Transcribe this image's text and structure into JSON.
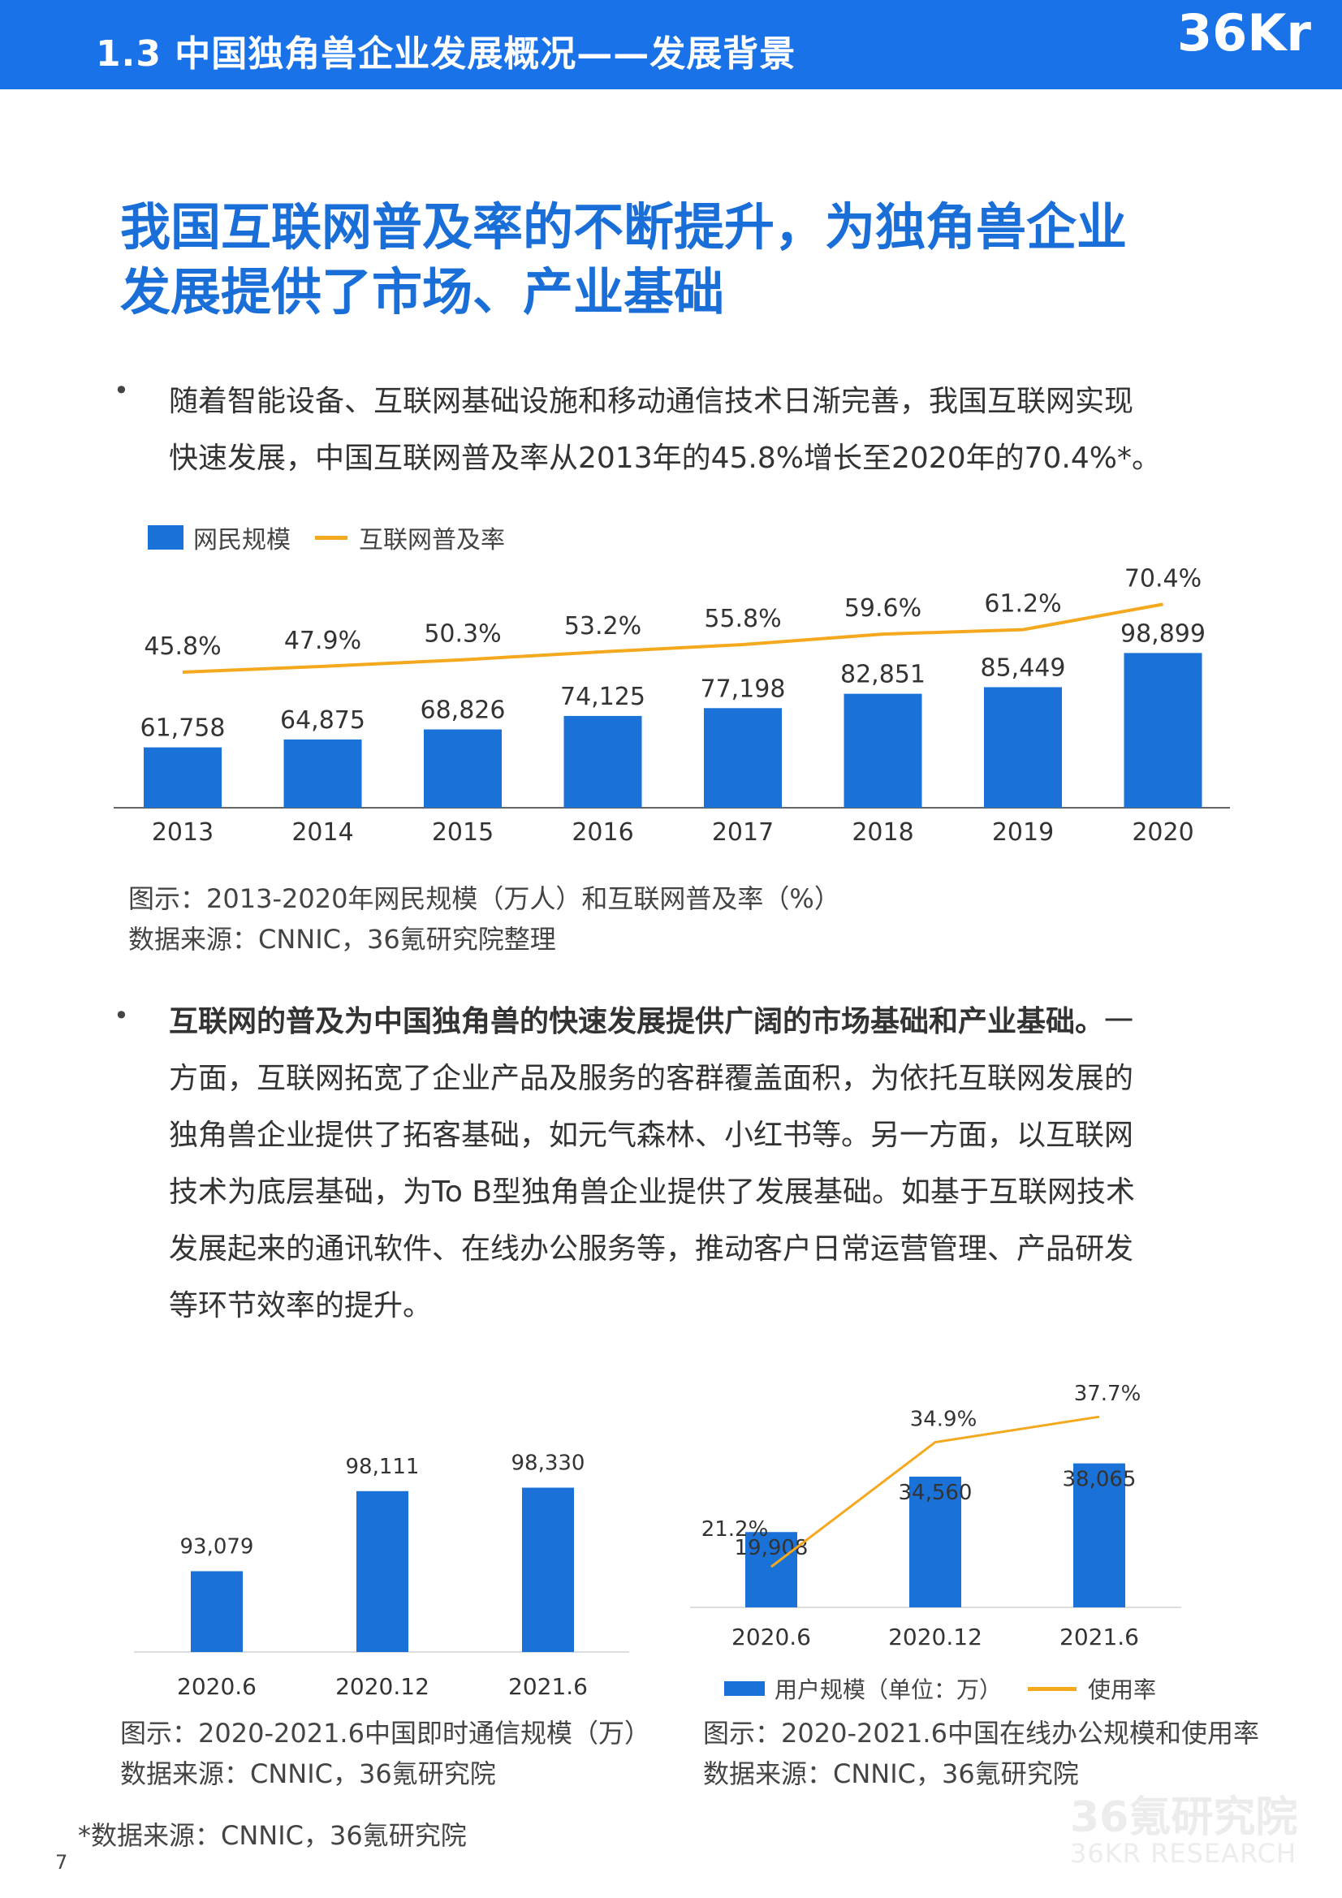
{
  "header": {
    "title": "1.3 中国独角兽企业发展概况——发展背景",
    "logo": "36Kr"
  },
  "main_title": {
    "line1": "我国互联网普及率的不断提升，为独角兽企业",
    "line2": "发展提供了市场、产业基础"
  },
  "bullet_symbol": "•",
  "para1": {
    "line1": "随着智能设备、互联网基础设施和移动通信技术日渐完善，我国互联网实现",
    "line2": "快速发展，中国互联网普及率从2013年的45.8%增长至2020年的70.4%*。"
  },
  "chart1": {
    "legend": {
      "bar": "网民规模",
      "line": "互联网普及率"
    },
    "caption": "图示：2013-2020年网民规模（万人）和互联网普及率（%）",
    "source": "数据来源：CNNIC，36氪研究院整理"
  },
  "para2": {
    "line1_bold": "互联网的普及为中国独角兽的快速发展提供广阔的市场基础和产业基础。",
    "line1_rest": "一",
    "line2": "方面，互联网拓宽了企业产品及服务的客群覆盖面积，为依托互联网发展的",
    "line3": "独角兽企业提供了拓客基础，如元气森林、小红书等。另一方面，以互联网",
    "line4": "技术为底层基础，为To  B型独角兽企业提供了发展基础。如基于互联网技术",
    "line5": "发展起来的通讯软件、在线办公服务等，推动客户日常运营管理、产品研发",
    "line6": "等环节效率的提升。"
  },
  "chart2": {
    "caption": "图示：2020-2021.6中国即时通信规模（万）",
    "source": "数据来源：CNNIC，36氪研究院"
  },
  "chart3": {
    "legend": {
      "bar": "用户规模（单位：万）",
      "line": "使用率"
    },
    "caption": "图示：2020-2021.6中国在线办公规模和使用率",
    "source": "数据来源：CNNIC，36氪研究院"
  },
  "footnote": "*数据来源：CNNIC，36氪研究院",
  "page_number": "7",
  "watermark": {
    "line1": "36氪研究院",
    "line2": "36KR RESEARCH"
  },
  "colors": {
    "brand_blue": "#1a72e8",
    "bar_blue": "#1a72d8",
    "line_orange": "#f4a81d",
    "title_blue": "#1a6ed8"
  },
  "chart_data": [
    {
      "type": "bar",
      "categories": [
        "2013",
        "2014",
        "2015",
        "2016",
        "2017",
        "2018",
        "2019",
        "2020"
      ],
      "series": [
        {
          "name": "网民规模",
          "values": [
            61758,
            64875,
            68826,
            74125,
            77198,
            82851,
            85449,
            98899
          ],
          "labels": [
            "61,758",
            "64,875",
            "68,826",
            "74,125",
            "77,198",
            "82,851",
            "85,449",
            "98,899"
          ]
        },
        {
          "name": "互联网普及率",
          "type": "line",
          "values": [
            45.8,
            47.9,
            50.3,
            53.2,
            55.8,
            59.6,
            61.2,
            70.4
          ],
          "labels": [
            "45.8%",
            "47.9%",
            "50.3%",
            "53.2%",
            "55.8%",
            "59.6%",
            "61.2%",
            "70.4%"
          ]
        }
      ],
      "legend": "top-left",
      "grid": false
    },
    {
      "type": "bar",
      "categories": [
        "2020.6",
        "2020.12",
        "2021.6"
      ],
      "values": [
        93079,
        98111,
        98330
      ],
      "labels": [
        "93,079",
        "98,111",
        "98,330"
      ],
      "grid": false
    },
    {
      "type": "bar",
      "categories": [
        "2020.6",
        "2020.12",
        "2021.6"
      ],
      "series": [
        {
          "name": "用户规模（单位：万）",
          "values": [
            19908,
            34560,
            38065
          ],
          "labels": [
            "19,908",
            "34,560",
            "38,065"
          ]
        },
        {
          "name": "使用率",
          "type": "line",
          "values": [
            21.2,
            34.9,
            37.7
          ],
          "labels": [
            "21.2%",
            "34.9%",
            "37.7%"
          ]
        }
      ],
      "legend": "bottom",
      "grid": false
    }
  ]
}
